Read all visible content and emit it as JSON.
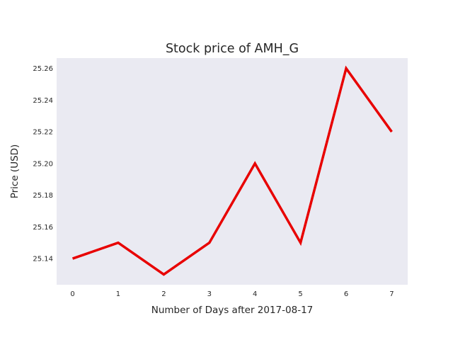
{
  "chart_data": {
    "type": "line",
    "title": "Stock price of AMH_G",
    "xlabel": "Number of Days after 2017-08-17",
    "ylabel": "Price (USD)",
    "x": [
      0,
      1,
      2,
      3,
      4,
      5,
      6,
      7
    ],
    "series": [
      {
        "values": [
          25.14,
          25.15,
          25.13,
          25.15,
          25.2,
          25.15,
          25.26,
          25.22
        ],
        "color": "#e80000"
      }
    ],
    "xticks": [
      "0",
      "1",
      "2",
      "3",
      "4",
      "5",
      "6",
      "7"
    ],
    "yticks": [
      "25.14",
      "25.16",
      "25.18",
      "25.20",
      "25.22",
      "25.24",
      "25.26"
    ],
    "xlim": [
      -0.35,
      7.35
    ],
    "ylim": [
      25.1235,
      25.2665
    ],
    "grid": false,
    "background_color": "#eaeaf2",
    "legend": "none"
  }
}
